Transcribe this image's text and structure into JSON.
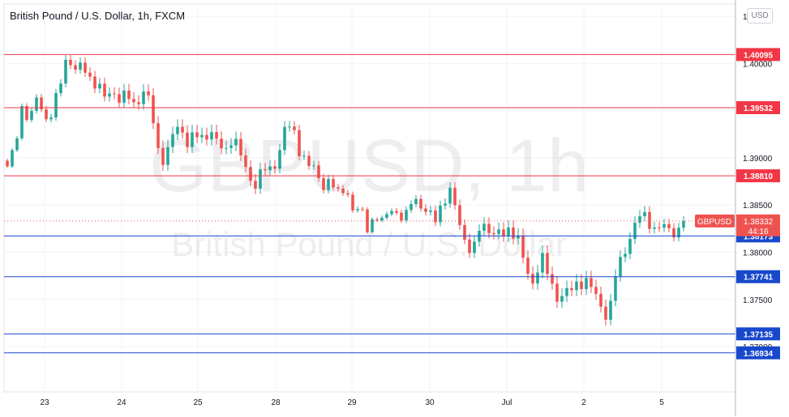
{
  "header": {
    "title": "British Pound / U.S. Dollar, 1h, FXCM",
    "currency": "USD"
  },
  "watermark": {
    "symbol": "GBPUSD, 1h",
    "name": "British Pound / U.S. Dollar"
  },
  "chart_data": {
    "type": "candlestick",
    "symbol": "GBPUSD",
    "timeframe": "1h",
    "x_tick_labels": [
      "23",
      "24",
      "25",
      "28",
      "29",
      "30",
      "Jul",
      "2",
      "5"
    ],
    "y_tick_labels": [
      "1.40500",
      "1.40000",
      "1.39500",
      "1.39000",
      "1.38500",
      "1.38000",
      "1.37500",
      "1.37000"
    ],
    "ylim": [
      1.3652,
      1.4063
    ],
    "grid": true,
    "last_price": {
      "label": "GBPUSD",
      "value": "1.38332",
      "countdown": "44:16",
      "color": "#ef5350"
    },
    "resistance_lines": [
      {
        "value": "1.40095",
        "color": "#f23645"
      },
      {
        "value": "1.39532",
        "color": "#f23645"
      },
      {
        "value": "1.38810",
        "color": "#f23645"
      }
    ],
    "support_lines": [
      {
        "value": "1.38173",
        "color": "#1848cc"
      },
      {
        "value": "1.37741",
        "color": "#1848cc"
      },
      {
        "value": "1.37135",
        "color": "#1848cc"
      },
      {
        "value": "1.36934",
        "color": "#1848cc"
      }
    ],
    "colors": {
      "up": "#26a69a",
      "down": "#ef5350"
    },
    "price_path": [
      {
        "d": "23",
        "p": [
          1.3888,
          1.3915,
          1.3955,
          1.3935,
          1.397,
          1.394,
          1.3945,
          1.398,
          1.401,
          1.399,
          1.4,
          1.3985
        ]
      },
      {
        "d": "24",
        "p": [
          1.3975,
          1.3965,
          1.3972,
          1.396,
          1.3968,
          1.3955,
          1.397,
          1.396
        ]
      },
      {
        "d": "24b",
        "p": [
          1.391,
          1.3895,
          1.3925,
          1.3935,
          1.3915,
          1.3925,
          1.392,
          1.393,
          1.3915,
          1.3905,
          1.3925
        ]
      },
      {
        "d": "28",
        "p": [
          1.3905,
          1.388,
          1.3872,
          1.389,
          1.3885,
          1.39,
          1.3935,
          1.393,
          1.3905,
          1.3895,
          1.3885,
          1.387,
          1.3878
        ]
      },
      {
        "d": "29",
        "p": [
          1.386,
          1.387,
          1.3845,
          1.3845,
          1.3825,
          1.384,
          1.383,
          1.3848,
          1.384,
          1.3835,
          1.386,
          1.385
        ]
      },
      {
        "d": "30",
        "p": [
          1.384,
          1.3835,
          1.3855,
          1.3865,
          1.3835,
          1.381,
          1.38,
          1.383,
          1.3825,
          1.382,
          1.3818,
          1.3825,
          1.3815
        ]
      },
      {
        "d": "Jul",
        "p": [
          1.378,
          1.3765,
          1.38,
          1.3775,
          1.375,
          1.3758,
          1.376,
          1.3765,
          1.3772,
          1.376,
          1.374,
          1.3732
        ]
      },
      {
        "d": "2",
        "p": [
          1.378,
          1.3795,
          1.382,
          1.384,
          1.3835,
          1.3825,
          1.383,
          1.3822,
          1.382
        ]
      },
      {
        "d": "5",
        "p": [
          1.3833
        ]
      }
    ]
  }
}
